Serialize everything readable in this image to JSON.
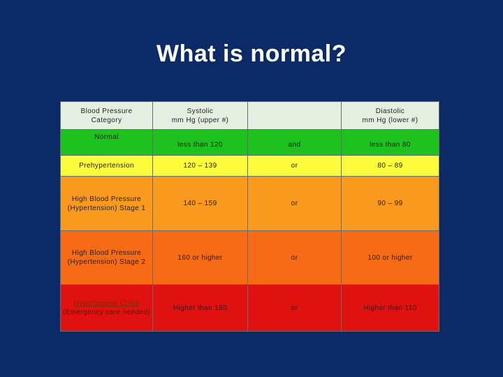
{
  "title": "What is normal?",
  "table": {
    "headers": {
      "category": [
        "Blood Pressure",
        "Category"
      ],
      "systolic": [
        "Systolic",
        "mm Hg (upper #)"
      ],
      "connector": "",
      "diastolic": [
        "Diastolic",
        "mm Hg (lower #)"
      ]
    },
    "rows": [
      {
        "category": [
          "Normal"
        ],
        "systolic": "less than 120",
        "connector": "and",
        "diastolic": "less than 80",
        "color": "#1ec21e"
      },
      {
        "category": [
          "Prehypertension"
        ],
        "systolic": "120 – 139",
        "connector": "or",
        "diastolic": "80 – 89",
        "color": "#fbfb3c"
      },
      {
        "category": [
          "High Blood Pressure",
          "(Hypertension) Stage 1"
        ],
        "systolic": "140 – 159",
        "connector": "or",
        "diastolic": "90 – 99",
        "color": "#f99a1e"
      },
      {
        "category": [
          "High Blood Pressure",
          "(Hypertension) Stage 2"
        ],
        "systolic": "160 or higher",
        "connector": "or",
        "diastolic": "100 or higher",
        "color": "#f76a16"
      },
      {
        "category": [
          "Hypertensive Crisis",
          "(Emergency care needed)"
        ],
        "systolic": "Higher than 180",
        "connector": "or",
        "diastolic": "Higher than 110",
        "color": "#e01111"
      }
    ]
  },
  "colors": {
    "background": "#0b2a66",
    "title": "#ffffff",
    "header_fill": "#e4efe2"
  }
}
